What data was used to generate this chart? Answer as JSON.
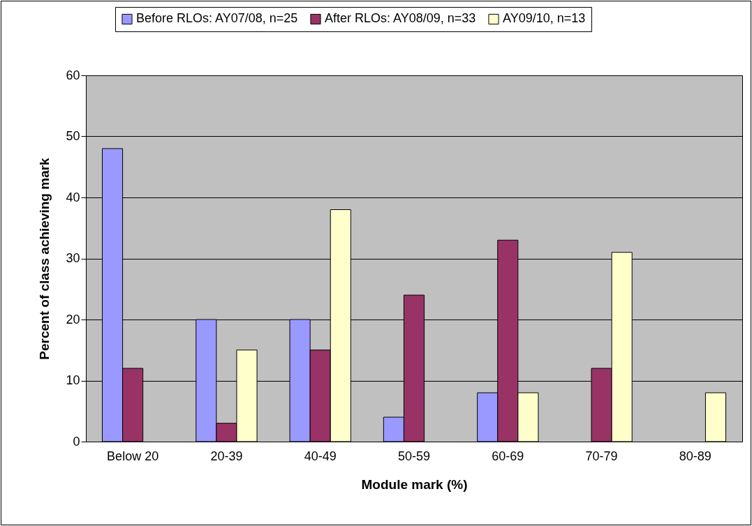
{
  "chart_data": {
    "type": "bar",
    "categories": [
      "Below 20",
      "20-39",
      "40-49",
      "50-59",
      "60-69",
      "70-79",
      "80-89"
    ],
    "series": [
      {
        "name": "Before RLOs: AY07/08, n=25",
        "color": "#9999ff",
        "values": [
          48,
          20,
          20,
          4,
          8,
          null,
          null
        ]
      },
      {
        "name": "After RLOs: AY08/09, n=33",
        "color": "#993366",
        "values": [
          12,
          3,
          15,
          24,
          33,
          12,
          null
        ]
      },
      {
        "name": "AY09/10, n=13",
        "color": "#ffffcc",
        "values": [
          null,
          15,
          38,
          null,
          8,
          31,
          8
        ]
      }
    ],
    "xlabel": "Module mark (%)",
    "ylabel": "Percent of class achieving mark",
    "ylim": [
      0,
      60
    ],
    "yticks": [
      0,
      10,
      20,
      30,
      40,
      50,
      60
    ],
    "grid": "y",
    "legend": "top"
  }
}
